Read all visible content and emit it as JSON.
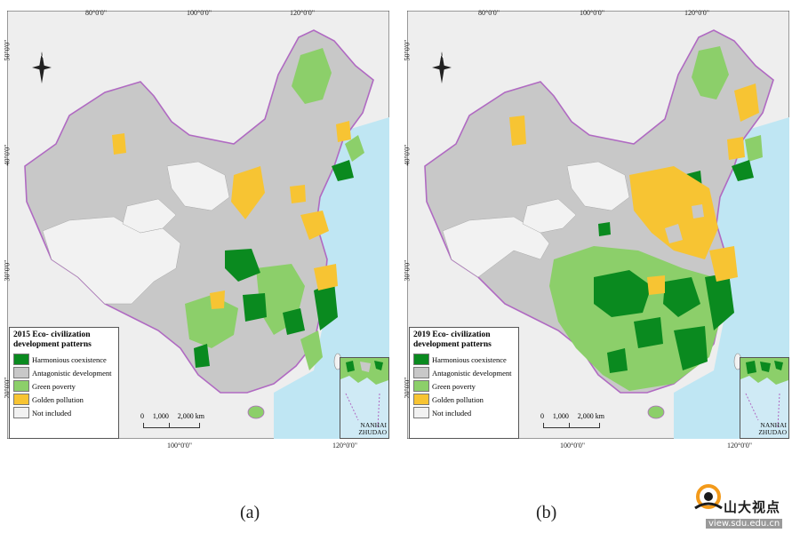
{
  "panels": [
    {
      "id": "a",
      "caption": "(a)",
      "legend_title": "2015 Eco- civilization development patterns",
      "ticks_top": [
        "80°0'0\"",
        "100°0'0\"",
        "120°0'0\""
      ],
      "ticks_bottom": [
        "100°0'0\"",
        "120°0'0\""
      ],
      "ticks_side": [
        "50°0'0\"",
        "40°0'0\"",
        "30°0'0\"",
        "20°0'0\""
      ]
    },
    {
      "id": "b",
      "caption": "(b)",
      "legend_title": "2019 Eco- civilization development patterns",
      "ticks_top": [
        "80°0'0\"",
        "100°0'0\"",
        "120°0'0\""
      ],
      "ticks_bottom": [
        "100°0'0\"",
        "120°0'0\""
      ],
      "ticks_side": [
        "50°0'0\"",
        "40°0'0\"",
        "30°0'0\"",
        "20°0'0\""
      ]
    }
  ],
  "legend": [
    {
      "label": "Harmonious coexistence",
      "color": "#0a8a1f"
    },
    {
      "label": "Antagonistic development",
      "color": "#c8c8c8"
    },
    {
      "label": "Green poverty",
      "color": "#8ccf6a"
    },
    {
      "label": "Golden pollution",
      "color": "#f7c433"
    },
    {
      "label": "Not included",
      "color": "#f2f2f2"
    }
  ],
  "scale": {
    "labels": [
      "0",
      "1,000",
      "2,000 km"
    ]
  },
  "inset": {
    "label_line1": "NANHAI",
    "label_line2": "ZHUDAO"
  },
  "colors": {
    "sea": "#bfe6f3",
    "boundary": "#b06ac2"
  },
  "watermark": {
    "cn": "山大视点",
    "url": "view.sdu.edu.cn"
  }
}
